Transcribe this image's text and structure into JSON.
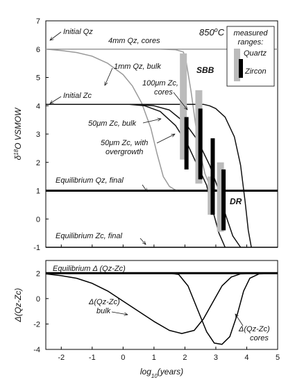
{
  "chart_data": [
    {
      "type": "line",
      "xlim": [
        -2.5,
        5
      ],
      "ylim": [
        -1,
        7
      ],
      "x_ticks": [
        -2,
        -1,
        0,
        1,
        2,
        3,
        4,
        5
      ],
      "y_ticks": [
        -1,
        0,
        1,
        2,
        3,
        4,
        5,
        6,
        7
      ],
      "ylabel": "δ18O VSMOW",
      "ylabel_parts": {
        "delta": "δ",
        "sup": "18",
        "rest": "O  VSMOW"
      },
      "temperature": {
        "value": "850",
        "sup": "o",
        "unit": "C"
      },
      "grid": false,
      "series": [
        {
          "name": "Initial Qz",
          "color": "#999999",
          "points": [
            [
              -2.5,
              6.0
            ],
            [
              5,
              6.0
            ]
          ],
          "segment_only": [
            [
              -2.5,
              6.0
            ],
            [
              -2.1,
              6.0
            ]
          ]
        },
        {
          "name": "4mm Qz, cores",
          "color": "#999999",
          "points": [
            [
              -2.5,
              6.0
            ],
            [
              1.2,
              6.0
            ],
            [
              1.7,
              5.98
            ],
            [
              1.95,
              5.9
            ],
            [
              2.05,
              5.5
            ],
            [
              2.2,
              4.5
            ],
            [
              2.35,
              3.3
            ],
            [
              2.5,
              2.3
            ],
            [
              2.65,
              1.6
            ],
            [
              2.8,
              1.2
            ],
            [
              2.95,
              1.05
            ],
            [
              3.1,
              1.0
            ]
          ]
        },
        {
          "name": "1mm Qz, bulk",
          "color": "#999999",
          "points": [
            [
              -2.5,
              6.0
            ],
            [
              -2,
              5.95
            ],
            [
              -1.5,
              5.88
            ],
            [
              -1,
              5.75
            ],
            [
              -0.5,
              5.5
            ],
            [
              0,
              5.1
            ],
            [
              0.3,
              4.7
            ],
            [
              0.6,
              4.1
            ],
            [
              0.9,
              3.2
            ],
            [
              1.1,
              2.3
            ],
            [
              1.3,
              1.5
            ],
            [
              1.5,
              1.15
            ],
            [
              1.7,
              1.02
            ],
            [
              2,
              1.0
            ]
          ]
        },
        {
          "name": "100μm Zc, cores",
          "color": "#111111",
          "points": [
            [
              -2.5,
              4.05
            ],
            [
              2.6,
              4.05
            ],
            [
              2.8,
              4.0
            ],
            [
              3.0,
              3.9
            ],
            [
              3.3,
              3.6
            ],
            [
              3.6,
              2.9
            ],
            [
              3.8,
              1.9
            ],
            [
              3.95,
              0.6
            ],
            [
              4.05,
              -0.4
            ],
            [
              4.15,
              -1.0
            ]
          ]
        },
        {
          "name": "50μm Zc, bulk",
          "color": "#111111",
          "points": [
            [
              -2.5,
              4.05
            ],
            [
              0.2,
              4.05
            ],
            [
              0.7,
              4.0
            ],
            [
              1.2,
              3.8
            ],
            [
              1.7,
              3.3
            ],
            [
              2.1,
              2.6
            ],
            [
              2.4,
              1.9
            ],
            [
              2.7,
              1.2
            ],
            [
              2.9,
              0.3
            ],
            [
              3.1,
              -0.5
            ],
            [
              3.3,
              -1.0
            ]
          ]
        },
        {
          "name": "50μm Zc, with overgrowth",
          "color": "#111111",
          "points": [
            [
              -2.5,
              4.05
            ],
            [
              0.3,
              4.05
            ],
            [
              1.0,
              4.0
            ],
            [
              1.5,
              3.85
            ],
            [
              2.0,
              3.4
            ],
            [
              2.4,
              2.8
            ],
            [
              2.8,
              1.9
            ],
            [
              3.1,
              1.0
            ],
            [
              3.3,
              0.2
            ],
            [
              3.55,
              -0.6
            ],
            [
              3.8,
              -1.0
            ]
          ]
        },
        {
          "name": "Equilibrium Qz, final",
          "color": "#000000",
          "thick": true,
          "points": [
            [
              -2.5,
              1.0
            ],
            [
              5,
              1.0
            ]
          ]
        },
        {
          "name": "Equilibrium Zc, final",
          "color": "#000000",
          "points": [
            [
              -2.5,
              -1.0
            ],
            [
              5,
              -1.0
            ]
          ]
        }
      ],
      "measured_ranges": [
        {
          "site": "SBB",
          "mineral": "Quartz",
          "x": 1.95,
          "ymin": 2.1,
          "ymax": 5.85,
          "color": "#bbbbbb"
        },
        {
          "site": "SBB",
          "mineral": "Quartz",
          "x": 2.45,
          "ymin": 1.25,
          "ymax": 4.55,
          "color": "#bbbbbb"
        },
        {
          "site": "SBB",
          "mineral": "Zircon",
          "x": 2.05,
          "ymin": 1.75,
          "ymax": 3.6,
          "color": "#000000"
        },
        {
          "site": "SBB",
          "mineral": "Zircon",
          "x": 2.5,
          "ymin": 1.4,
          "ymax": 3.9,
          "color": "#000000"
        },
        {
          "site": "DR",
          "mineral": "Quartz",
          "x": 2.85,
          "ymin": 0.15,
          "ymax": 1.5,
          "color": "#bbbbbb"
        },
        {
          "site": "DR",
          "mineral": "Quartz",
          "x": 3.15,
          "ymin": -0.45,
          "ymax": 2.0,
          "color": "#bbbbbb"
        },
        {
          "site": "DR",
          "mineral": "Zircon",
          "x": 2.9,
          "ymin": 0.15,
          "ymax": 2.85,
          "color": "#000000"
        },
        {
          "site": "DR",
          "mineral": "Zircon",
          "x": 3.25,
          "ymin": -0.4,
          "ymax": 1.75,
          "color": "#000000"
        }
      ],
      "annotations": {
        "initial_qz": "Initial Qz",
        "qz_4mm": "4mm Qz, cores",
        "qz_1mm": "1mm Qz, bulk",
        "zc_100_line1": "100μm Zc,",
        "zc_100_line2": "cores",
        "initial_zc": "Initial Zc",
        "zc_50_bulk": "50μm Zc, bulk",
        "zc_50_over_line1": "50μm Zc, with",
        "zc_50_over_line2": "overgrowth",
        "eq_qz": "Equilibrium Qz, final",
        "eq_zc": "Equilibrium Zc, final",
        "sbb": "SBB",
        "dr": "DR"
      },
      "legend": {
        "title_line1": "measured",
        "title_line2": "ranges:",
        "quartz": "Quartz",
        "zircon": "Zircon",
        "placement": "top-right"
      }
    },
    {
      "type": "line",
      "xlim": [
        -2.5,
        5
      ],
      "ylim": [
        -4,
        3
      ],
      "x_ticks": [
        -2,
        -1,
        0,
        1,
        2,
        3,
        4,
        5
      ],
      "y_ticks": [
        -4,
        -2,
        0,
        2
      ],
      "ylabel": "Δ(Qz-Zc)",
      "xlabel": "log10(years)",
      "xlabel_parts": {
        "base": "log",
        "sub": "10",
        "rest": "(years)"
      },
      "grid": false,
      "series": [
        {
          "name": "Equilibrium Δ (Qz-Zc)",
          "color": "#000000",
          "thick": true,
          "points": [
            [
              -2.5,
              2.0
            ],
            [
              5,
              2.0
            ]
          ]
        },
        {
          "name": "Δ(Qz-Zc) bulk",
          "color": "#000000",
          "points": [
            [
              -2.5,
              1.95
            ],
            [
              -2,
              1.8
            ],
            [
              -1.5,
              1.6
            ],
            [
              -1,
              1.2
            ],
            [
              -0.5,
              0.6
            ],
            [
              0,
              -0.2
            ],
            [
              0.5,
              -1.0
            ],
            [
              1.0,
              -1.8
            ],
            [
              1.5,
              -2.5
            ],
            [
              1.9,
              -2.75
            ],
            [
              2.3,
              -2.5
            ],
            [
              2.6,
              -1.6
            ],
            [
              2.9,
              -0.3
            ],
            [
              3.2,
              1.0
            ],
            [
              3.5,
              1.7
            ],
            [
              3.8,
              1.95
            ],
            [
              4.2,
              2.0
            ]
          ]
        },
        {
          "name": "Δ(Qz-Zc) cores",
          "color": "#000000",
          "points": [
            [
              -2.5,
              2.0
            ],
            [
              1.5,
              2.0
            ],
            [
              1.8,
              1.9
            ],
            [
              2.1,
              1.0
            ],
            [
              2.4,
              -0.8
            ],
            [
              2.7,
              -2.6
            ],
            [
              2.95,
              -3.5
            ],
            [
              3.2,
              -3.6
            ],
            [
              3.45,
              -3.0
            ],
            [
              3.7,
              -1.2
            ],
            [
              3.9,
              0.6
            ],
            [
              4.1,
              1.6
            ],
            [
              4.4,
              1.95
            ],
            [
              4.7,
              2.0
            ]
          ]
        }
      ],
      "annotations": {
        "eq_delta": "Equilibrium Δ (Qz-Zc)",
        "bulk_line1": "Δ(Qz-Zc)",
        "bulk_line2": "bulk",
        "cores_line1": "Δ(Qz-Zc)",
        "cores_line2": "cores"
      }
    }
  ]
}
